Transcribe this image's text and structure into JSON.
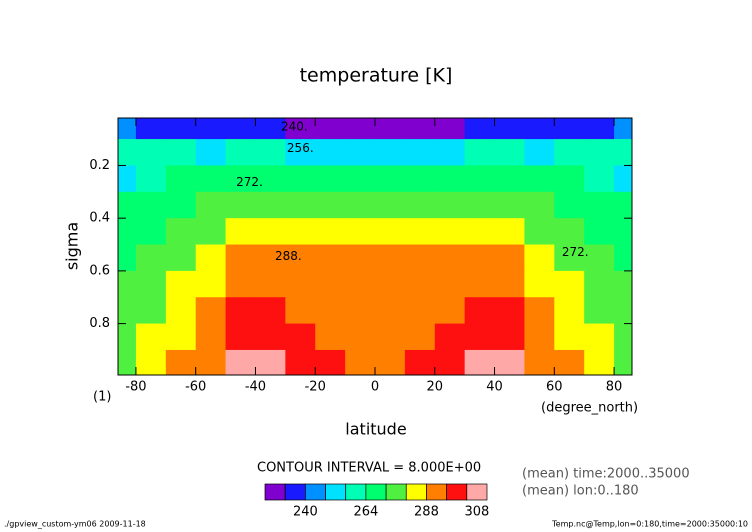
{
  "chart_data": {
    "type": "contour",
    "title": "temperature [K]",
    "x_label": "latitude",
    "y_label": "sigma",
    "x_unit": "(degree_north)",
    "y_unit": "(1)",
    "x": [
      -85,
      -75,
      -65,
      -55,
      -45,
      -35,
      -25,
      -15,
      -5,
      5,
      15,
      25,
      35,
      45,
      55,
      65,
      75,
      85
    ],
    "y": [
      0.05,
      0.15,
      0.25,
      0.35,
      0.45,
      0.55,
      0.65,
      0.75,
      0.85,
      0.95
    ],
    "z": [
      [
        240,
        239,
        238,
        236,
        234,
        233,
        231,
        230,
        229,
        229,
        230,
        231,
        233,
        234,
        236,
        238,
        239,
        240
      ],
      [
        258,
        257,
        256,
        255,
        256,
        256,
        254,
        252,
        250,
        250,
        252,
        254,
        256,
        256,
        255,
        256,
        257,
        258
      ],
      [
        254,
        262,
        265,
        266,
        268,
        270,
        268,
        266,
        265,
        265,
        266,
        268,
        270,
        268,
        266,
        265,
        262,
        254
      ],
      [
        264,
        268,
        270,
        272,
        275,
        276,
        275,
        274,
        273,
        273,
        274,
        275,
        276,
        275,
        272,
        270,
        268,
        264
      ],
      [
        268,
        271,
        274,
        279,
        282,
        283,
        283,
        283,
        282,
        282,
        283,
        283,
        283,
        282,
        279,
        274,
        271,
        268
      ],
      [
        271,
        274,
        278,
        284,
        289,
        290,
        290,
        289,
        289,
        289,
        289,
        290,
        290,
        289,
        284,
        278,
        274,
        271
      ],
      [
        273,
        276,
        281,
        287,
        292,
        293,
        292,
        291,
        291,
        291,
        291,
        292,
        293,
        292,
        287,
        281,
        276,
        273
      ],
      [
        276,
        279,
        284,
        290,
        296,
        297,
        295,
        293,
        292,
        292,
        293,
        295,
        297,
        296,
        290,
        284,
        279,
        276
      ],
      [
        279,
        282,
        287,
        293,
        300,
        301,
        298,
        295,
        294,
        294,
        295,
        298,
        301,
        300,
        293,
        287,
        282,
        279
      ],
      [
        276,
        283,
        289,
        295,
        304,
        305,
        300,
        296,
        295,
        295,
        296,
        300,
        305,
        304,
        295,
        289,
        283,
        276
      ]
    ],
    "levels": [
      232,
      240,
      248,
      256,
      264,
      272,
      280,
      288,
      296,
      304
    ],
    "colors": [
      "#8000d0",
      "#1a1aff",
      "#0090ff",
      "#00e0ff",
      "#00ffb4",
      "#00ff6e",
      "#50f040",
      "#ffff00",
      "#ff8000",
      "#ff1010",
      "#ffa8a8"
    ],
    "xlim": [
      -86,
      86
    ],
    "ylim": [
      0.995,
      0.02
    ],
    "xticks": [
      -80,
      -60,
      -40,
      -20,
      0,
      20,
      40,
      60,
      80
    ],
    "yticks": [
      0.2,
      0.4,
      0.6,
      0.8
    ],
    "contour_labels": [
      {
        "text": "240.",
        "x": -27,
        "y": 0.055
      },
      {
        "text": "256.",
        "x": -25,
        "y": 0.135
      },
      {
        "text": "272.",
        "x": -42,
        "y": 0.265
      },
      {
        "text": "288.",
        "x": -29,
        "y": 0.545
      },
      {
        "text": "272.",
        "x": 67,
        "y": 0.53
      }
    ],
    "contour_interval": "CONTOUR INTERVAL = 8.000E+00",
    "notes": [
      "(mean) time:2000..35000",
      "(mean) lon:0..180"
    ],
    "colorbar_ticks": [
      240,
      264,
      288,
      308
    ],
    "footer_left": "./gpview_custom-ym06  2009-11-18",
    "footer_right": "Temp.nc@Temp,lon=0:180,time=2000:35000:10"
  }
}
